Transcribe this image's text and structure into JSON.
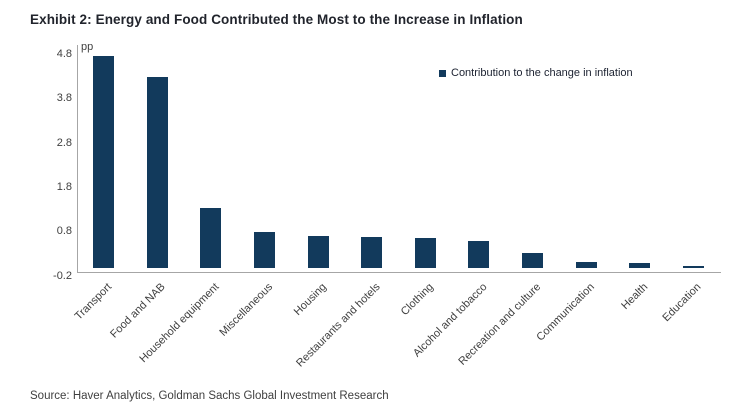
{
  "title": "Exhibit 2: Energy and Food Contributed the Most to the Increase in Inflation",
  "source": "Source: Haver Analytics, Goldman Sachs Global Investment Research",
  "legend": {
    "label": "Contribution to the change in inflation"
  },
  "colors": {
    "bar": "#123A5C",
    "axis_line": "#A6A6A6",
    "tick_text": "#3F3F3F",
    "title_text": "#21242C",
    "source_text": "#404040"
  },
  "chart_data": {
    "type": "bar",
    "title": "Exhibit 2: Energy and Food Contributed the Most to the Increase in Inflation",
    "unit_label": "pp",
    "categories": [
      "Transport",
      "Food and NAB",
      "Household equipment",
      "Miscellaneous",
      "Housing",
      "Restaurants and hotels",
      "Clothing",
      "Alcohol and tobacco",
      "Recreation and culture",
      "Communication",
      "Health",
      "Education"
    ],
    "values": [
      4.78,
      4.31,
      1.36,
      0.8,
      0.72,
      0.7,
      0.67,
      0.6,
      0.33,
      0.13,
      0.11,
      0.04
    ],
    "xlabel": "",
    "ylabel": "pp",
    "ylim": [
      -0.2,
      4.9
    ],
    "yticks": [
      4.8,
      3.8,
      2.8,
      1.8,
      0.8,
      -0.2
    ],
    "legend": [
      "Contribution to the change in inflation"
    ],
    "legend_position": "upper-right",
    "grid": false,
    "bar_color": "#123A5C"
  }
}
